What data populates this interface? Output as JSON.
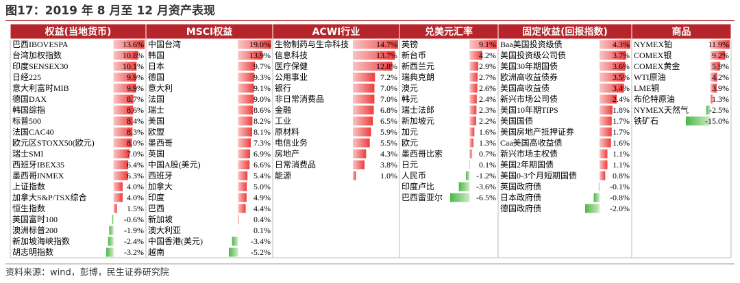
{
  "title": "图17：2019 年 8 月至 12 月资产表现",
  "columns": [
    {
      "header": "权益(当地货币)",
      "rows": [
        {
          "name": "巴西IBOVESPA",
          "value": 13.6,
          "label": "13.6%"
        },
        {
          "name": "台湾加权指数",
          "value": 10.8,
          "label": "10.8%"
        },
        {
          "name": "印度SENSEX30",
          "value": 10.1,
          "label": "10.1%"
        },
        {
          "name": "日经225",
          "value": 9.9,
          "label": "9.9%"
        },
        {
          "name": "意大利富时MIB",
          "value": 9.9,
          "label": "9.9%"
        },
        {
          "name": "德国DAX",
          "value": 8.7,
          "label": "8.7%"
        },
        {
          "name": "韩国综指",
          "value": 8.6,
          "label": "8.6%"
        },
        {
          "name": "标普500",
          "value": 8.4,
          "label": "8.4%"
        },
        {
          "name": "法国CAC40",
          "value": 8.3,
          "label": "8.3%"
        },
        {
          "name": "欧元区STOXX50(欧元)",
          "value": 8.0,
          "label": "8.0%"
        },
        {
          "name": "瑞士SMI",
          "value": 7.0,
          "label": "7.0%"
        },
        {
          "name": "西班牙IBEX35",
          "value": 6.4,
          "label": "6.4%"
        },
        {
          "name": "墨西哥INMEX",
          "value": 6.3,
          "label": "6.3%"
        },
        {
          "name": "上证指数",
          "value": 4.0,
          "label": "4.0%"
        },
        {
          "name": "加拿大S&P/TSX综合",
          "value": 4.0,
          "label": "4.0%"
        },
        {
          "name": "恒生指数",
          "value": 1.5,
          "label": "1.5%"
        },
        {
          "name": "英国富时100",
          "value": -0.6,
          "label": "-0.6%"
        },
        {
          "name": "澳洲标普200",
          "value": -1.9,
          "label": "-1.9%"
        },
        {
          "name": "新加坡海峡指数",
          "value": -2.4,
          "label": "-2.4%"
        },
        {
          "name": "胡志明指数",
          "value": -3.2,
          "label": "-3.2%"
        }
      ]
    },
    {
      "header": "MSCI权益",
      "rows": [
        {
          "name": "中国台湾",
          "value": 19.0,
          "label": "19.0%"
        },
        {
          "name": "韩国",
          "value": 13.9,
          "label": "13.9%"
        },
        {
          "name": "日本",
          "value": 9.7,
          "label": "9.7%"
        },
        {
          "name": "德国",
          "value": 9.3,
          "label": "9.3%"
        },
        {
          "name": "意大利",
          "value": 9.1,
          "label": "9.1%"
        },
        {
          "name": "法国",
          "value": 9.0,
          "label": "9.0%"
        },
        {
          "name": "瑞士",
          "value": 8.6,
          "label": "8.6%"
        },
        {
          "name": "美国",
          "value": 8.2,
          "label": "8.2%"
        },
        {
          "name": "欧盟",
          "value": 8.1,
          "label": "8.1%"
        },
        {
          "name": "墨西哥",
          "value": 7.3,
          "label": "7.3%"
        },
        {
          "name": "英国",
          "value": 6.9,
          "label": "6.9%"
        },
        {
          "name": "中国A股(美元)",
          "value": 6.6,
          "label": "6.6%"
        },
        {
          "name": "西班牙",
          "value": 5.4,
          "label": "5.4%"
        },
        {
          "name": "加拿大",
          "value": 5.0,
          "label": "5.0%"
        },
        {
          "name": "印度",
          "value": 4.9,
          "label": "4.9%"
        },
        {
          "name": "巴西",
          "value": 4.4,
          "label": "4.4%"
        },
        {
          "name": "新加坡",
          "value": 0.4,
          "label": "0.4%"
        },
        {
          "name": "澳大利亚",
          "value": 0.1,
          "label": "0.1%"
        },
        {
          "name": "中国香港(美元)",
          "value": -3.4,
          "label": "-3.4%"
        },
        {
          "name": "越南",
          "value": -5.2,
          "label": "-5.2%"
        }
      ]
    },
    {
      "header": "ACWI行业",
      "rows": [
        {
          "name": "生物制药与生命科技",
          "value": 14.7,
          "label": "14.7%"
        },
        {
          "name": "信息科技",
          "value": 13.7,
          "label": "13.7%"
        },
        {
          "name": "医疗保健",
          "value": 12.8,
          "label": "12.8%"
        },
        {
          "name": "公用事业",
          "value": 7.2,
          "label": "7.2%"
        },
        {
          "name": "银行",
          "value": 7.0,
          "label": "7.0%"
        },
        {
          "name": "非日常消费品",
          "value": 7.0,
          "label": "7.0%"
        },
        {
          "name": "金融",
          "value": 6.8,
          "label": "6.8%"
        },
        {
          "name": "工业",
          "value": 6.5,
          "label": "6.5%"
        },
        {
          "name": "原材料",
          "value": 5.9,
          "label": "5.9%"
        },
        {
          "name": "电信业务",
          "value": 5.5,
          "label": "5.5%"
        },
        {
          "name": "房地产",
          "value": 4.3,
          "label": "4.3%"
        },
        {
          "name": "日常消费品",
          "value": 3.8,
          "label": "3.8%"
        },
        {
          "name": "能源",
          "value": 1.0,
          "label": "1.0%"
        }
      ]
    },
    {
      "header": "兑美元汇率",
      "rows": [
        {
          "name": "英镑",
          "value": 9.1,
          "label": "9.1%"
        },
        {
          "name": "新台币",
          "value": 4.2,
          "label": "4.2%"
        },
        {
          "name": "新西兰元",
          "value": 2.9,
          "label": "2.9%"
        },
        {
          "name": "瑞典克朗",
          "value": 2.7,
          "label": "2.7%"
        },
        {
          "name": "澳元",
          "value": 2.6,
          "label": "2.6%"
        },
        {
          "name": "韩元",
          "value": 2.4,
          "label": "2.4%"
        },
        {
          "name": "瑞士法郎",
          "value": 2.3,
          "label": "2.3%"
        },
        {
          "name": "新加坡元",
          "value": 2.2,
          "label": "2.2%"
        },
        {
          "name": "加元",
          "value": 1.6,
          "label": "1.6%"
        },
        {
          "name": "欧元",
          "value": 1.3,
          "label": "1.3%"
        },
        {
          "name": "墨西哥比索",
          "value": 0.7,
          "label": "0.7%"
        },
        {
          "name": "日元",
          "value": 0.1,
          "label": "0.1%"
        },
        {
          "name": "人民币",
          "value": -1.2,
          "label": "-1.2%"
        },
        {
          "name": "印度卢比",
          "value": -3.6,
          "label": "-3.6%"
        },
        {
          "name": "巴西雷亚尔",
          "value": -6.5,
          "label": "-6.5%"
        }
      ]
    },
    {
      "header": "固定收益(回报指数)",
      "rows": [
        {
          "name": "Baa美国投资级债",
          "value": 4.3,
          "label": "4.3%"
        },
        {
          "name": "美国投资级公司债",
          "value": 3.7,
          "label": "3.7%"
        },
        {
          "name": "美国30年期国债",
          "value": 3.6,
          "label": "3.6%"
        },
        {
          "name": "欧洲高收益债券",
          "value": 3.5,
          "label": "3.5%"
        },
        {
          "name": "美国高收益债",
          "value": 3.4,
          "label": "3.4%"
        },
        {
          "name": "新兴市场公司债",
          "value": 2.4,
          "label": "2.4%"
        },
        {
          "name": "美国10年期TIPS",
          "value": 1.8,
          "label": "1.8%"
        },
        {
          "name": "美国国债",
          "value": 1.7,
          "label": "1.7%"
        },
        {
          "name": "美国房地产抵押证券",
          "value": 1.7,
          "label": "1.7%"
        },
        {
          "name": "Caa美国高收益债",
          "value": 1.6,
          "label": "1.6%"
        },
        {
          "name": "新兴市场主权债",
          "value": 1.1,
          "label": "1.1%"
        },
        {
          "name": "美国2年期国债",
          "value": 1.1,
          "label": "1.1%"
        },
        {
          "name": "美国0-3个月短期国债",
          "value": 0.8,
          "label": "0.8%"
        },
        {
          "name": "英国政府债",
          "value": -0.1,
          "label": "-0.1%"
        },
        {
          "name": "日本政府债",
          "value": -0.8,
          "label": "-0.8%"
        },
        {
          "name": "德国政府债",
          "value": -2.0,
          "label": "-2.0%"
        }
      ]
    },
    {
      "header": "商品",
      "rows": [
        {
          "name": "NYMEX铂",
          "value": 11.9,
          "label": "11.9%"
        },
        {
          "name": "COMEX银",
          "value": 9.2,
          "label": "9.2%"
        },
        {
          "name": "COMEX黄金",
          "value": 5.9,
          "label": "5.9%"
        },
        {
          "name": "WTI原油",
          "value": 4.2,
          "label": "4.2%"
        },
        {
          "name": "LME铜",
          "value": 3.9,
          "label": "3.9%"
        },
        {
          "name": "布伦特原油",
          "value": 1.3,
          "label": "1.3%"
        },
        {
          "name": "NYMEX天然气",
          "value": -2.5,
          "label": "-2.5%"
        },
        {
          "name": "铁矿石",
          "value": -15.0,
          "label": "-15.0%"
        }
      ]
    }
  ],
  "source": "资料来源：wind，彭博，民生证券研究院"
}
